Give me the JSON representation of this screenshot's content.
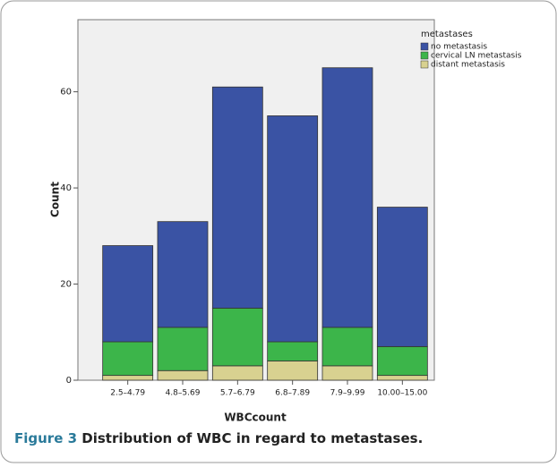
{
  "chart_data": {
    "type": "stacked_bar",
    "y_label": "Count",
    "x_label": "WBCcount",
    "legend_title": "metastases",
    "categories": [
      "2.5–4.79",
      "4.8–5.69",
      "5.7–6.79",
      "6.8–7.89",
      "7.9–9.99",
      "10.00–15.00"
    ],
    "series": [
      {
        "name": "distant metastasis",
        "color": "#d8d190",
        "values": [
          1,
          2,
          3,
          4,
          3,
          1
        ]
      },
      {
        "name": "cervical LN metastasis",
        "color": "#3cb54a",
        "values": [
          7,
          9,
          12,
          4,
          8,
          6
        ]
      },
      {
        "name": "no metastasis",
        "color": "#3a53a4",
        "values": [
          20,
          22,
          46,
          47,
          54,
          29
        ]
      }
    ],
    "legend_order": [
      2,
      1,
      0
    ],
    "ylim": [
      0,
      75
    ],
    "yticks": [
      0,
      20,
      40,
      60
    ]
  },
  "caption": {
    "label": "Figure 3",
    "text": "Distribution of WBC in regard to metastases."
  }
}
